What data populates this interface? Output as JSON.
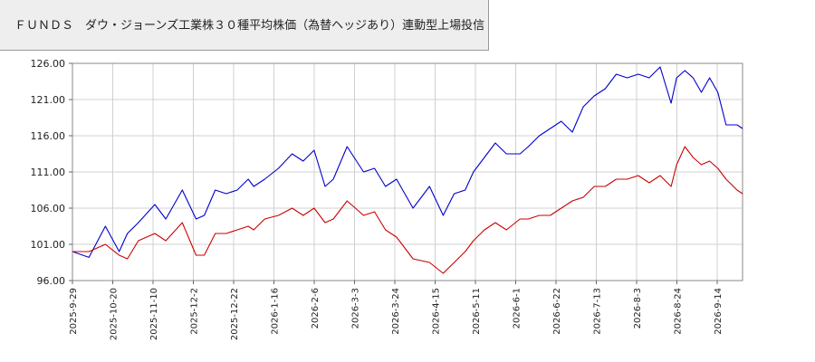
{
  "chart_data": {
    "type": "line",
    "title": "ＦＵＮＤＳ　ダウ・ジョーンズ工業株３０種平均株価（為替ヘッジあり）連動型上場投信",
    "ylim": [
      96,
      126
    ],
    "y_ticks": [
      "96.00",
      "101.00",
      "106.00",
      "111.00",
      "116.00",
      "121.00",
      "126.00"
    ],
    "x_ticks": [
      "2025-9-29",
      "2025-10-20",
      "2025-11-10",
      "2025-12-2",
      "2025-12-22",
      "2026-1-16",
      "2026-2-6",
      "2026-3-3",
      "2026-3-24",
      "2026-4-15",
      "2026-5-11",
      "2026-6-1",
      "2026-6-22",
      "2026-7-13",
      "2026-8-3",
      "2026-8-24",
      "2026-9-14"
    ],
    "grid": true,
    "legend": "none",
    "x_range_index": [
      0,
      244
    ],
    "series": [
      {
        "color": "#0000cc",
        "x": [
          0,
          6,
          12,
          17,
          20,
          24,
          30,
          34,
          40,
          45,
          48,
          52,
          56,
          60,
          64,
          66,
          70,
          75,
          80,
          84,
          88,
          92,
          95,
          100,
          106,
          110,
          114,
          118,
          124,
          130,
          135,
          139,
          143,
          146,
          150,
          154,
          158,
          163,
          166,
          170,
          174,
          178,
          182,
          186,
          190,
          194,
          198,
          202,
          206,
          210,
          214,
          218,
          220,
          223,
          226,
          229,
          232,
          235,
          238,
          242,
          244
        ],
        "values": [
          100.0,
          99.2,
          103.5,
          100.0,
          102.5,
          104.0,
          106.5,
          104.5,
          108.5,
          104.5,
          105.0,
          108.5,
          108.0,
          108.5,
          110.0,
          109.0,
          110.0,
          111.5,
          113.5,
          112.5,
          114.0,
          109.0,
          110.0,
          114.5,
          111.0,
          111.5,
          109.0,
          110.0,
          106.0,
          109.0,
          105.0,
          108.0,
          108.5,
          111.0,
          113.0,
          115.0,
          113.5,
          113.5,
          114.5,
          116.0,
          117.0,
          118.0,
          116.5,
          120.0,
          121.5,
          122.5,
          124.5,
          124.0,
          124.5,
          124.0,
          125.5,
          120.5,
          124.0,
          125.0,
          124.0,
          122.0,
          124.0,
          122.0,
          117.5,
          117.5,
          117.0
        ]
      },
      {
        "color": "#cc0000",
        "x": [
          0,
          6,
          12,
          17,
          20,
          24,
          30,
          34,
          40,
          45,
          48,
          52,
          56,
          60,
          64,
          66,
          70,
          75,
          80,
          84,
          88,
          92,
          95,
          100,
          106,
          110,
          114,
          118,
          124,
          130,
          135,
          139,
          143,
          146,
          150,
          154,
          158,
          163,
          166,
          170,
          174,
          178,
          182,
          186,
          190,
          194,
          198,
          202,
          206,
          210,
          214,
          218,
          220,
          223,
          226,
          229,
          232,
          235,
          238,
          242,
          244
        ],
        "values": [
          100.0,
          100.0,
          101.0,
          99.5,
          99.0,
          101.5,
          102.5,
          101.5,
          104.0,
          99.5,
          99.5,
          102.5,
          102.5,
          103.0,
          103.5,
          103.0,
          104.5,
          105.0,
          106.0,
          105.0,
          106.0,
          104.0,
          104.5,
          107.0,
          105.0,
          105.5,
          103.0,
          102.0,
          99.0,
          98.5,
          97.0,
          98.5,
          100.0,
          101.5,
          103.0,
          104.0,
          103.0,
          104.5,
          104.5,
          105.0,
          105.0,
          106.0,
          107.0,
          107.5,
          109.0,
          109.0,
          110.0,
          110.0,
          110.5,
          109.5,
          110.5,
          109.0,
          112.0,
          114.5,
          113.0,
          112.0,
          112.5,
          111.5,
          110.0,
          108.5,
          108.0
        ]
      }
    ]
  }
}
